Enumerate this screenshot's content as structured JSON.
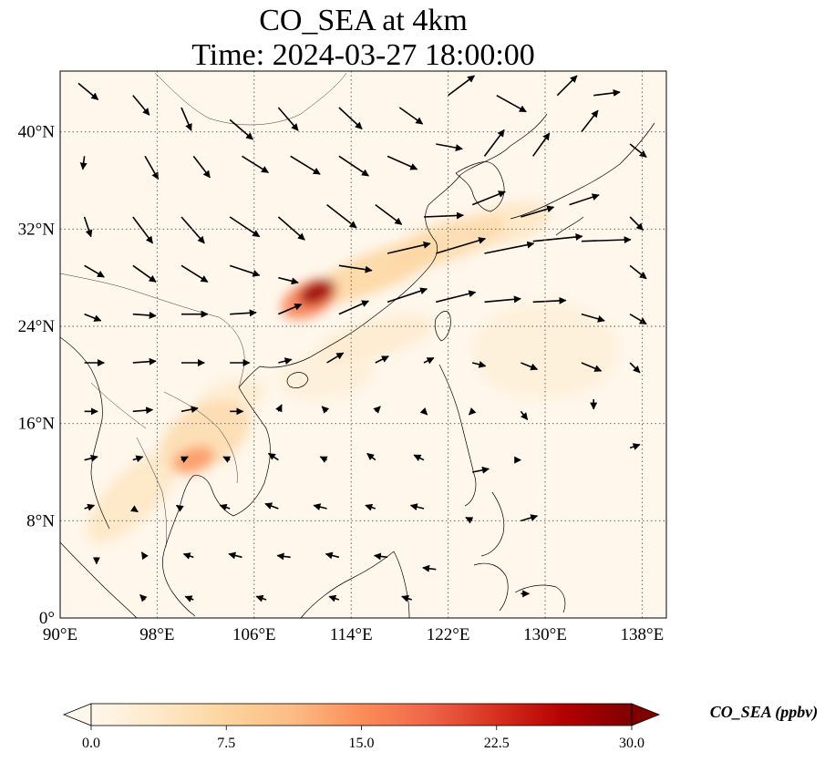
{
  "title_line1": "CO_SEA at 4km",
  "title_line2": "Time: 2024-03-27 18:00:00",
  "map": {
    "lon_range": [
      90,
      140
    ],
    "lat_range": [
      0,
      45
    ],
    "lon_ticks": [
      {
        "value": 90,
        "label": "90°E"
      },
      {
        "value": 98,
        "label": "98°E"
      },
      {
        "value": 106,
        "label": "106°E"
      },
      {
        "value": 114,
        "label": "114°E"
      },
      {
        "value": 122,
        "label": "122°E"
      },
      {
        "value": 130,
        "label": "130°E"
      },
      {
        "value": 138,
        "label": "138°E"
      }
    ],
    "lat_ticks": [
      {
        "value": 0,
        "label": "0°"
      },
      {
        "value": 8,
        "label": "8°N"
      },
      {
        "value": 16,
        "label": "16°N"
      },
      {
        "value": 24,
        "label": "24°N"
      },
      {
        "value": 32,
        "label": "32°N"
      },
      {
        "value": 40,
        "label": "40°N"
      }
    ],
    "gridlines": "dotted",
    "plumes": [
      {
        "lon": 111.2,
        "lat": 26.8,
        "rx": 1.6,
        "ry": 0.9,
        "rot": -25,
        "value": 28
      },
      {
        "lon": 110.5,
        "lat": 26.2,
        "rx": 2.4,
        "ry": 1.4,
        "rot": -25,
        "value": 16
      },
      {
        "lon": 116,
        "lat": 28.5,
        "rx": 6,
        "ry": 1.6,
        "rot": -22,
        "value": 7
      },
      {
        "lon": 122,
        "lat": 31,
        "rx": 5,
        "ry": 1.6,
        "rot": -18,
        "value": 6
      },
      {
        "lon": 127,
        "lat": 32.5,
        "rx": 3.5,
        "ry": 1.6,
        "rot": -15,
        "value": 4
      },
      {
        "lon": 101,
        "lat": 13,
        "rx": 1.8,
        "ry": 1.0,
        "rot": -20,
        "value": 14
      },
      {
        "lon": 102,
        "lat": 15,
        "rx": 4,
        "ry": 2.5,
        "rot": -30,
        "value": 6
      },
      {
        "lon": 96,
        "lat": 10,
        "rx": 5,
        "ry": 2,
        "rot": -45,
        "value": 4
      },
      {
        "lon": 104,
        "lat": 18,
        "rx": 3,
        "ry": 1.5,
        "rot": -20,
        "value": 3
      },
      {
        "lon": 116,
        "lat": 23,
        "rx": 5,
        "ry": 1.5,
        "rot": -15,
        "value": 3
      },
      {
        "lon": 130,
        "lat": 22,
        "rx": 6,
        "ry": 4,
        "rot": 0,
        "value": 2
      },
      {
        "lon": 112,
        "lat": 20,
        "rx": 4,
        "ry": 2,
        "rot": -10,
        "value": 2
      }
    ],
    "wind_vectors": [
      {
        "lon": 91.5,
        "lat": 44,
        "u": 1.2,
        "v": -1.0
      },
      {
        "lon": 96,
        "lat": 43,
        "u": 1.0,
        "v": -1.2
      },
      {
        "lon": 100,
        "lat": 42,
        "u": 0.6,
        "v": -1.4
      },
      {
        "lon": 104,
        "lat": 41,
        "u": 1.4,
        "v": -1.2
      },
      {
        "lon": 108,
        "lat": 42,
        "u": 1.2,
        "v": -1.4
      },
      {
        "lon": 113,
        "lat": 42,
        "u": 1.4,
        "v": -1.3
      },
      {
        "lon": 118,
        "lat": 42,
        "u": 1.4,
        "v": -1.0
      },
      {
        "lon": 122,
        "lat": 43,
        "u": 1.6,
        "v": 1.2
      },
      {
        "lon": 126,
        "lat": 43,
        "u": 1.8,
        "v": -1.0
      },
      {
        "lon": 131,
        "lat": 43,
        "u": 1.2,
        "v": 1.2
      },
      {
        "lon": 134,
        "lat": 43,
        "u": 1.6,
        "v": 0.2
      },
      {
        "lon": 92,
        "lat": 38,
        "u": -0.1,
        "v": -0.8
      },
      {
        "lon": 97,
        "lat": 38,
        "u": 0.8,
        "v": -1.4
      },
      {
        "lon": 101,
        "lat": 38,
        "u": 1.0,
        "v": -1.3
      },
      {
        "lon": 105,
        "lat": 38,
        "u": 1.6,
        "v": -1.0
      },
      {
        "lon": 109,
        "lat": 38,
        "u": 1.8,
        "v": -1.1
      },
      {
        "lon": 113,
        "lat": 38,
        "u": 1.8,
        "v": -1.2
      },
      {
        "lon": 117,
        "lat": 38,
        "u": 1.8,
        "v": -0.8
      },
      {
        "lon": 121,
        "lat": 39,
        "u": 1.6,
        "v": -0.3
      },
      {
        "lon": 125,
        "lat": 38,
        "u": 1.2,
        "v": 1.6
      },
      {
        "lon": 129,
        "lat": 38,
        "u": 1.0,
        "v": 1.4
      },
      {
        "lon": 133,
        "lat": 40,
        "u": 1.0,
        "v": 1.3
      },
      {
        "lon": 137,
        "lat": 39,
        "u": 1.0,
        "v": -0.8
      },
      {
        "lon": 92,
        "lat": 33,
        "u": 0.4,
        "v": -1.2
      },
      {
        "lon": 96,
        "lat": 33,
        "u": 1.2,
        "v": -1.6
      },
      {
        "lon": 100,
        "lat": 33,
        "u": 1.4,
        "v": -1.6
      },
      {
        "lon": 104,
        "lat": 33,
        "u": 1.8,
        "v": -1.2
      },
      {
        "lon": 108,
        "lat": 33,
        "u": 1.6,
        "v": -1.4
      },
      {
        "lon": 112,
        "lat": 34,
        "u": 1.8,
        "v": -1.4
      },
      {
        "lon": 116,
        "lat": 34,
        "u": 1.6,
        "v": -1.2
      },
      {
        "lon": 120,
        "lat": 33,
        "u": 2.4,
        "v": 0.1
      },
      {
        "lon": 124,
        "lat": 34,
        "u": 2.0,
        "v": 0.8
      },
      {
        "lon": 128,
        "lat": 33,
        "u": 2.0,
        "v": 0.6
      },
      {
        "lon": 132,
        "lat": 34,
        "u": 1.8,
        "v": 0.6
      },
      {
        "lon": 137,
        "lat": 33,
        "u": 0.8,
        "v": -0.8
      },
      {
        "lon": 92,
        "lat": 29,
        "u": 1.2,
        "v": -0.7
      },
      {
        "lon": 96,
        "lat": 29,
        "u": 1.4,
        "v": -1.0
      },
      {
        "lon": 100,
        "lat": 29,
        "u": 1.6,
        "v": -1.0
      },
      {
        "lon": 104,
        "lat": 29,
        "u": 1.8,
        "v": -0.6
      },
      {
        "lon": 108,
        "lat": 28,
        "u": 1.2,
        "v": -0.3
      },
      {
        "lon": 113,
        "lat": 29,
        "u": 2.0,
        "v": -0.3
      },
      {
        "lon": 117,
        "lat": 30,
        "u": 2.6,
        "v": 0.6
      },
      {
        "lon": 121,
        "lat": 30,
        "u": 3.0,
        "v": 0.9
      },
      {
        "lon": 125,
        "lat": 30,
        "u": 3.0,
        "v": 0.6
      },
      {
        "lon": 129,
        "lat": 31,
        "u": 3.0,
        "v": 0.3
      },
      {
        "lon": 133,
        "lat": 31,
        "u": 3.0,
        "v": 0.1
      },
      {
        "lon": 137,
        "lat": 29,
        "u": 1.0,
        "v": -0.8
      },
      {
        "lon": 92,
        "lat": 25,
        "u": 1.0,
        "v": -0.4
      },
      {
        "lon": 96,
        "lat": 25,
        "u": 1.4,
        "v": -0.1
      },
      {
        "lon": 100,
        "lat": 25,
        "u": 1.6,
        "v": 0.0
      },
      {
        "lon": 104,
        "lat": 25,
        "u": 1.6,
        "v": 0.1
      },
      {
        "lon": 108,
        "lat": 25,
        "u": 1.4,
        "v": 0.6
      },
      {
        "lon": 113,
        "lat": 25,
        "u": 1.8,
        "v": 0.8
      },
      {
        "lon": 117,
        "lat": 26,
        "u": 2.4,
        "v": 0.8
      },
      {
        "lon": 121,
        "lat": 26,
        "u": 2.4,
        "v": 0.6
      },
      {
        "lon": 125,
        "lat": 26,
        "u": 2.2,
        "v": 0.2
      },
      {
        "lon": 129,
        "lat": 26,
        "u": 2.0,
        "v": 0.1
      },
      {
        "lon": 133,
        "lat": 25,
        "u": 1.4,
        "v": -0.4
      },
      {
        "lon": 137,
        "lat": 25,
        "u": 1.0,
        "v": -0.6
      },
      {
        "lon": 92,
        "lat": 21,
        "u": 1.2,
        "v": 0.0
      },
      {
        "lon": 96,
        "lat": 21,
        "u": 1.4,
        "v": 0.1
      },
      {
        "lon": 100,
        "lat": 21,
        "u": 1.4,
        "v": 0.0
      },
      {
        "lon": 104,
        "lat": 21,
        "u": 1.2,
        "v": 0.0
      },
      {
        "lon": 108,
        "lat": 21,
        "u": 0.8,
        "v": 0.2
      },
      {
        "lon": 112,
        "lat": 21,
        "u": 1.0,
        "v": 0.6
      },
      {
        "lon": 116,
        "lat": 21,
        "u": 0.8,
        "v": 0.4
      },
      {
        "lon": 120,
        "lat": 21,
        "u": 0.6,
        "v": 0.3
      },
      {
        "lon": 124,
        "lat": 21,
        "u": 0.8,
        "v": -0.2
      },
      {
        "lon": 128,
        "lat": 21,
        "u": 1.0,
        "v": -0.4
      },
      {
        "lon": 133,
        "lat": 21,
        "u": 1.2,
        "v": -0.5
      },
      {
        "lon": 137,
        "lat": 21,
        "u": 0.6,
        "v": -0.6
      },
      {
        "lon": 92,
        "lat": 17,
        "u": 0.8,
        "v": 0.0
      },
      {
        "lon": 96,
        "lat": 17,
        "u": 1.2,
        "v": 0.1
      },
      {
        "lon": 100,
        "lat": 17,
        "u": 1.0,
        "v": 0.2
      },
      {
        "lon": 104,
        "lat": 17,
        "u": 0.8,
        "v": 0.0
      },
      {
        "lon": 108,
        "lat": 17,
        "u": 0.2,
        "v": 0.4
      },
      {
        "lon": 112,
        "lat": 17,
        "u": -0.3,
        "v": 0.3
      },
      {
        "lon": 116,
        "lat": 17,
        "u": 0.3,
        "v": 0.3
      },
      {
        "lon": 120,
        "lat": 17,
        "u": 0.2,
        "v": -0.2
      },
      {
        "lon": 124,
        "lat": 17,
        "u": -0.2,
        "v": -0.2
      },
      {
        "lon": 128,
        "lat": 17,
        "u": 0.4,
        "v": -0.5
      },
      {
        "lon": 134,
        "lat": 18,
        "u": 0.0,
        "v": -0.6
      },
      {
        "lon": 137,
        "lat": 14,
        "u": 0.6,
        "v": 0.2
      },
      {
        "lon": 92,
        "lat": 13,
        "u": 0.8,
        "v": 0.2
      },
      {
        "lon": 96,
        "lat": 13,
        "u": 0.6,
        "v": 0.2
      },
      {
        "lon": 100,
        "lat": 13,
        "u": 0.4,
        "v": 0.2
      },
      {
        "lon": 104,
        "lat": 13,
        "u": -0.4,
        "v": 0.2
      },
      {
        "lon": 108,
        "lat": 13,
        "u": -0.6,
        "v": 0.4
      },
      {
        "lon": 112,
        "lat": 13,
        "u": -0.4,
        "v": 0.2
      },
      {
        "lon": 116,
        "lat": 13,
        "u": -0.5,
        "v": 0.4
      },
      {
        "lon": 120,
        "lat": 13,
        "u": -0.6,
        "v": 0.3
      },
      {
        "lon": 124,
        "lat": 12,
        "u": 1.0,
        "v": 0.2
      },
      {
        "lon": 128,
        "lat": 13,
        "u": 0.0,
        "v": 0.0
      },
      {
        "lon": 92,
        "lat": 9,
        "u": 0.6,
        "v": 0.2
      },
      {
        "lon": 96,
        "lat": 9,
        "u": 0.3,
        "v": -0.2
      },
      {
        "lon": 100,
        "lat": 9,
        "u": -0.3,
        "v": 0.2
      },
      {
        "lon": 104,
        "lat": 9,
        "u": -0.6,
        "v": 0.2
      },
      {
        "lon": 108,
        "lat": 9,
        "u": -0.8,
        "v": 0.3
      },
      {
        "lon": 112,
        "lat": 9,
        "u": -0.8,
        "v": 0.2
      },
      {
        "lon": 116,
        "lat": 9,
        "u": -0.6,
        "v": 0.2
      },
      {
        "lon": 120,
        "lat": 9,
        "u": -0.8,
        "v": 0.2
      },
      {
        "lon": 124,
        "lat": 8,
        "u": -0.4,
        "v": 0.2
      },
      {
        "lon": 128,
        "lat": 8,
        "u": 1.0,
        "v": 0.3
      },
      {
        "lon": 93,
        "lat": 5,
        "u": 0.0,
        "v": -0.4
      },
      {
        "lon": 97,
        "lat": 5,
        "u": -0.2,
        "v": 0.3
      },
      {
        "lon": 101,
        "lat": 5,
        "u": -0.6,
        "v": 0.2
      },
      {
        "lon": 105,
        "lat": 5,
        "u": -0.8,
        "v": 0.2
      },
      {
        "lon": 109,
        "lat": 5,
        "u": -0.8,
        "v": 0.1
      },
      {
        "lon": 113,
        "lat": 5,
        "u": -0.8,
        "v": 0.2
      },
      {
        "lon": 117,
        "lat": 5,
        "u": -0.8,
        "v": 0.1
      },
      {
        "lon": 121,
        "lat": 4,
        "u": -0.8,
        "v": 0.1
      },
      {
        "lon": 97,
        "lat": 1.5,
        "u": -0.3,
        "v": 0.3
      },
      {
        "lon": 101,
        "lat": 1.5,
        "u": -0.5,
        "v": 0.2
      },
      {
        "lon": 107,
        "lat": 1.5,
        "u": -0.6,
        "v": 0.2
      },
      {
        "lon": 113,
        "lat": 1.5,
        "u": -0.6,
        "v": 0.2
      },
      {
        "lon": 119,
        "lat": 1.5,
        "u": -0.6,
        "v": 0.2
      },
      {
        "lon": 128,
        "lat": 2,
        "u": 0.5,
        "v": 0.0
      }
    ]
  },
  "colorbar": {
    "label": "CO_SEA (ppbv)",
    "min": 0,
    "max": 30,
    "extend": "both",
    "colormap": "OrRd",
    "colors": [
      "#fff7ec",
      "#fee8c8",
      "#fdd49e",
      "#fdbb84",
      "#fc8d59",
      "#ef6548",
      "#d7301f",
      "#b30000",
      "#7f0000"
    ],
    "ticks": [
      {
        "value": 0,
        "label": "0.0"
      },
      {
        "value": 7.5,
        "label": "7.5"
      },
      {
        "value": 15,
        "label": "15.0"
      },
      {
        "value": 22.5,
        "label": "22.5"
      },
      {
        "value": 30,
        "label": "30.0"
      }
    ]
  }
}
